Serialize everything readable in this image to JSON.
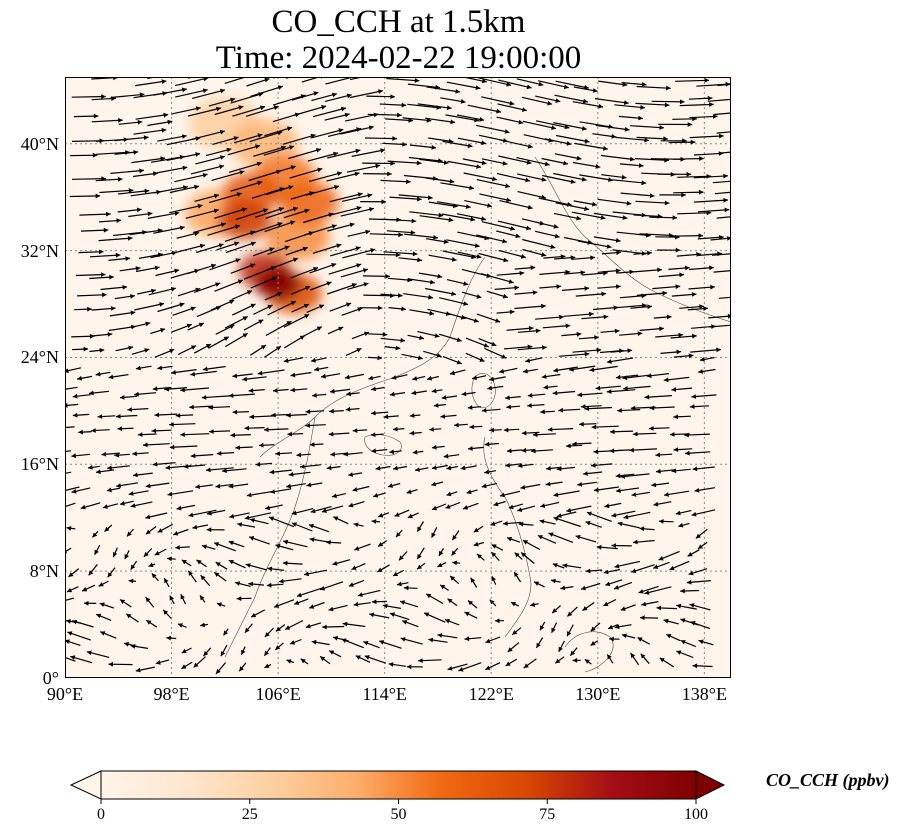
{
  "title": {
    "line1": "CO_CCH at 1.5km",
    "line2": "Time: 2024-02-22 19:00:00"
  },
  "map": {
    "projection": "PlateCarree",
    "lon_range": [
      90,
      140
    ],
    "lat_range": [
      0,
      45
    ],
    "gridlines": "dotted",
    "lat_ticks": [
      {
        "value": 40,
        "label": "40°N"
      },
      {
        "value": 32,
        "label": "32°N"
      },
      {
        "value": 24,
        "label": "24°N"
      },
      {
        "value": 16,
        "label": "16°N"
      },
      {
        "value": 8,
        "label": "8°N"
      },
      {
        "value": 0,
        "label": "0°"
      }
    ],
    "lon_ticks": [
      {
        "value": 90,
        "label": "90°E"
      },
      {
        "value": 98,
        "label": "98°E"
      },
      {
        "value": 106,
        "label": "106°E"
      },
      {
        "value": 114,
        "label": "114°E"
      },
      {
        "value": 122,
        "label": "122°E"
      },
      {
        "value": 130,
        "label": "130°E"
      },
      {
        "value": 138,
        "label": "138°E"
      }
    ],
    "co_plume_centers": [
      {
        "lon": 106.0,
        "lat": 29.5,
        "value": 100
      },
      {
        "lon": 105.0,
        "lat": 30.5,
        "value": 80
      },
      {
        "lon": 107.2,
        "lat": 28.8,
        "value": 70
      },
      {
        "lon": 103.5,
        "lat": 34.3,
        "value": 75
      },
      {
        "lon": 104.0,
        "lat": 36.3,
        "value": 65
      },
      {
        "lon": 108.3,
        "lat": 35.6,
        "value": 60
      },
      {
        "lon": 106.5,
        "lat": 37.5,
        "value": 55
      },
      {
        "lon": 107.5,
        "lat": 33.0,
        "value": 50
      },
      {
        "lon": 105.0,
        "lat": 40.0,
        "value": 40
      },
      {
        "lon": 102.0,
        "lat": 41.5,
        "value": 30
      },
      {
        "lon": 101.5,
        "lat": 34.8,
        "value": 45
      }
    ],
    "wind_vector_color": "#000000",
    "land_background": "#fff5eb"
  },
  "colorbar": {
    "title": "CO_CCH (ppbv)",
    "colormap": "OrRd",
    "min": 0,
    "max": 100,
    "extend": "both",
    "ticks": [
      {
        "value": 0,
        "label": "0"
      },
      {
        "value": 25,
        "label": "25"
      },
      {
        "value": 50,
        "label": "50"
      },
      {
        "value": 75,
        "label": "75"
      },
      {
        "value": 100,
        "label": "100"
      }
    ],
    "colors": [
      "#fff5eb",
      "#fee6ce",
      "#fdd0a2",
      "#fdae6b",
      "#f16913",
      "#d94801",
      "#a50f15",
      "#7f0000"
    ]
  }
}
